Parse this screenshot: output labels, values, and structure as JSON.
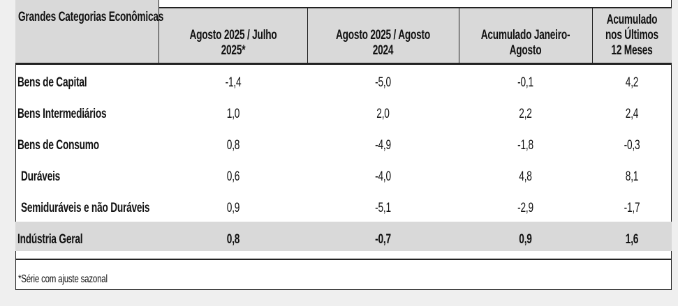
{
  "table": {
    "headers": [
      "Grandes Categorias Econômicas",
      "Agosto 2025 / Julho 2025*",
      "Agosto 2025 / Agosto 2024",
      "Acumulado Janeiro-Agosto",
      "Acumulado nos Últimos 12 Meses"
    ],
    "rows": [
      [
        "Bens de Capital",
        "-1,4",
        "-5,0",
        "-0,1",
        "4,2"
      ],
      [
        "Bens Intermediários",
        "1,0",
        "2,0",
        "2,2",
        "2,4"
      ],
      [
        "Bens de Consumo",
        "0,8",
        "-4,9",
        "-1,8",
        "-0,3"
      ],
      [
        "Duráveis",
        "0,6",
        "-4,0",
        "4,8",
        "8,1"
      ],
      [
        "Semiduráveis e não Duráveis",
        "0,9",
        "-5,1",
        "-2,9",
        "-1,7"
      ],
      [
        "Indústria Geral",
        "0,8",
        "-0,7",
        "0,9",
        "1,6"
      ]
    ],
    "footnote": "*Série com ajuste sazonal"
  }
}
